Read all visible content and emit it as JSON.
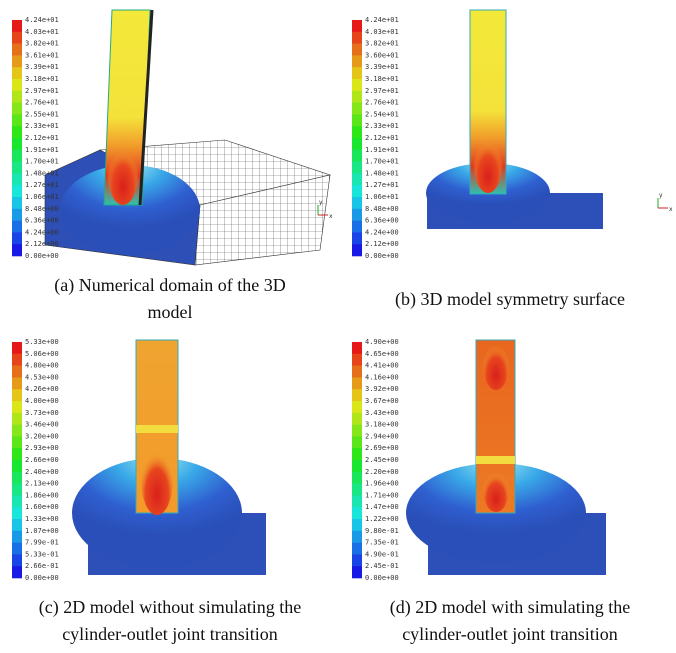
{
  "panels": [
    {
      "colorbar_labels": [
        "4.24e+01",
        "4.03e+01",
        "3.82e+01",
        "3.61e+01",
        "3.39e+01",
        "3.18e+01",
        "2.97e+01",
        "2.76e+01",
        "2.55e+01",
        "2.33e+01",
        "2.12e+01",
        "1.91e+01",
        "1.70e+01",
        "1.48e+01",
        "1.27e+01",
        "1.06e+01",
        "8.48e+00",
        "6.36e+00",
        "4.24e+00",
        "2.12e+00",
        "0.00e+00"
      ],
      "caption_lines": [
        "(a) Numerical domain of the 3D",
        "model"
      ],
      "axis_labels": [
        "y",
        "x"
      ]
    },
    {
      "colorbar_labels": [
        "4.24e+01",
        "4.03e+01",
        "3.82e+01",
        "3.60e+01",
        "3.39e+01",
        "3.18e+01",
        "2.97e+01",
        "2.76e+01",
        "2.54e+01",
        "2.33e+01",
        "2.12e+01",
        "1.91e+01",
        "1.70e+01",
        "1.48e+01",
        "1.27e+01",
        "1.06e+01",
        "8.48e+00",
        "6.36e+00",
        "4.24e+00",
        "2.12e+00",
        "0.00e+00"
      ],
      "caption_lines": [
        "(b) 3D model symmetry surface"
      ],
      "axis_labels": [
        "y",
        "x"
      ]
    },
    {
      "colorbar_labels": [
        "5.33e+00",
        "5.06e+00",
        "4.80e+00",
        "4.53e+00",
        "4.26e+00",
        "4.00e+00",
        "3.73e+00",
        "3.46e+00",
        "3.20e+00",
        "2.93e+00",
        "2.66e+00",
        "2.40e+00",
        "2.13e+00",
        "1.86e+00",
        "1.60e+00",
        "1.33e+00",
        "1.07e+00",
        "7.99e-01",
        "5.33e-01",
        "2.66e-01",
        "0.00e+00"
      ],
      "caption_lines": [
        "(c) 2D model without simulating the",
        "cylinder-outlet joint transition"
      ]
    },
    {
      "colorbar_labels": [
        "4.90e+00",
        "4.65e+00",
        "4.41e+00",
        "4.16e+00",
        "3.92e+00",
        "3.67e+00",
        "3.43e+00",
        "3.18e+00",
        "2.94e+00",
        "2.69e+00",
        "2.45e+00",
        "2.20e+00",
        "1.96e+00",
        "1.71e+00",
        "1.47e+00",
        "1.22e+00",
        "9.80e-01",
        "7.35e-01",
        "4.90e-01",
        "2.45e-01",
        "0.00e+00"
      ],
      "caption_lines": [
        "(d) 2D model with simulating the",
        "cylinder-outlet joint transition"
      ]
    }
  ]
}
